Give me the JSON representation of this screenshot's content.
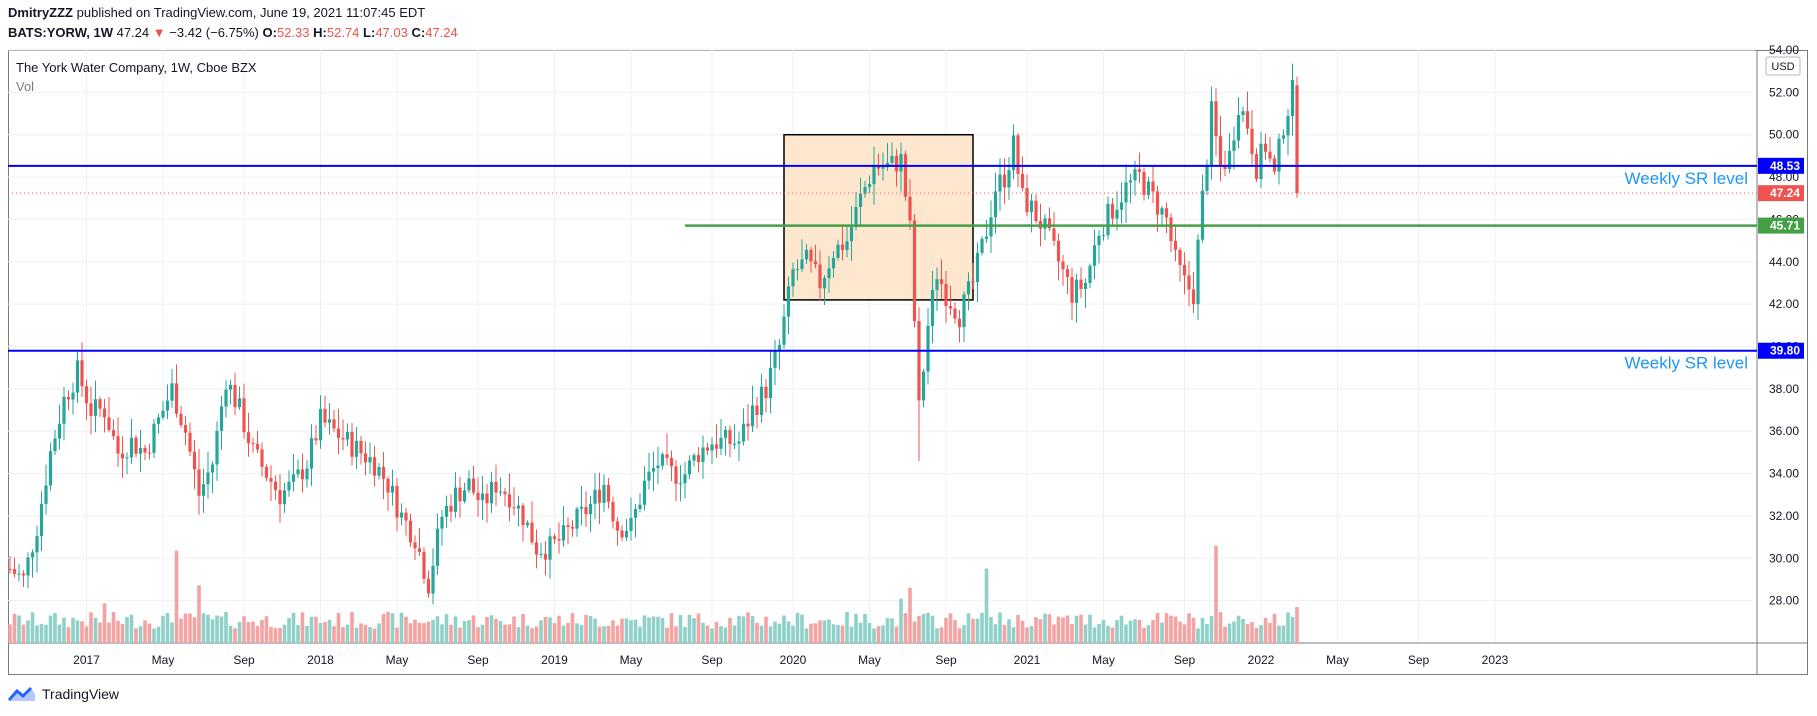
{
  "header": {
    "author": "DmitryZZZ",
    "published_text": "published on TradingView.com, June 19, 2021 11:07:45 EDT",
    "symbol": "BATS:YORW, 1W",
    "last": "47.24",
    "change_arrow": "▼",
    "change": "−3.42 (−6.75%)",
    "o_label": "O:",
    "o": "52.33",
    "h_label": "H:",
    "h": "52.74",
    "l_label": "L:",
    "l": "47.03",
    "c_label": "C:",
    "c": "47.24"
  },
  "legend": {
    "title": "The York Water Company, 1W, Cboe BZX",
    "vol": "Vol"
  },
  "footer": {
    "brand": "TradingView"
  },
  "colors": {
    "up": "#26a69a",
    "down": "#ef5350",
    "vol_up": "#8fd1c9",
    "vol_down": "#f3a3a1",
    "sr_line": "#0000ff",
    "green_line": "#43a047",
    "box_fill": "#fde8cf",
    "grid": "#eef0f3",
    "axis_text": "#131722"
  },
  "chart_data": {
    "type": "candlestick",
    "currency_badge": "USD",
    "y_ticks": [
      "28.00",
      "30.00",
      "32.00",
      "34.00",
      "36.00",
      "38.00",
      "40.00",
      "42.00",
      "44.00",
      "46.00",
      "48.00",
      "50.00",
      "52.00",
      "54.00"
    ],
    "x_ticks": [
      "2017",
      "May",
      "Sep",
      "2018",
      "May",
      "Sep",
      "2019",
      "May",
      "Sep",
      "2020",
      "May",
      "Sep",
      "2021",
      "May",
      "Sep",
      "2022",
      "May",
      "Sep",
      "2023"
    ],
    "ylim": [
      26.0,
      54.0
    ],
    "levels": [
      {
        "value": 48.53,
        "label": "48.53",
        "annotation": "Weekly SR level",
        "color": "#0000ff"
      },
      {
        "value": 39.8,
        "label": "39.80",
        "annotation": "Weekly SR level",
        "color": "#0000ff"
      },
      {
        "value": 45.71,
        "label": "45.71",
        "annotation": "",
        "color": "#43a047"
      }
    ],
    "last_price": {
      "value": 47.24,
      "label": "47.24"
    },
    "range_box": {
      "top": 50.0,
      "bottom": 42.2,
      "start_week": 172,
      "end_week": 214
    },
    "keypoints": [
      [
        0,
        29.5
      ],
      [
        3,
        29.0
      ],
      [
        6,
        31.5
      ],
      [
        9,
        35.0
      ],
      [
        12,
        37.5
      ],
      [
        15,
        38.8
      ],
      [
        18,
        37.0
      ],
      [
        21,
        37.0
      ],
      [
        24,
        35.0
      ],
      [
        27,
        35.5
      ],
      [
        30,
        35.0
      ],
      [
        33,
        36.5
      ],
      [
        36,
        38.0
      ],
      [
        39,
        36.0
      ],
      [
        42,
        33.0
      ],
      [
        45,
        34.5
      ],
      [
        48,
        38.5
      ],
      [
        51,
        37.0
      ],
      [
        54,
        35.0
      ],
      [
        57,
        34.0
      ],
      [
        60,
        33.0
      ],
      [
        63,
        33.5
      ],
      [
        66,
        34.5
      ],
      [
        69,
        36.5
      ],
      [
        72,
        36.0
      ],
      [
        75,
        35.5
      ],
      [
        78,
        35.0
      ],
      [
        81,
        34.5
      ],
      [
        84,
        33.5
      ],
      [
        87,
        32.0
      ],
      [
        90,
        31.0
      ],
      [
        93,
        28.8
      ],
      [
        96,
        32.0
      ],
      [
        99,
        33.0
      ],
      [
        102,
        33.5
      ],
      [
        105,
        32.5
      ],
      [
        108,
        33.5
      ],
      [
        111,
        33.0
      ],
      [
        114,
        32.0
      ],
      [
        117,
        30.5
      ],
      [
        120,
        30.5
      ],
      [
        123,
        31.0
      ],
      [
        126,
        31.8
      ],
      [
        129,
        32.5
      ],
      [
        132,
        33.5
      ],
      [
        135,
        31.5
      ],
      [
        138,
        31.5
      ],
      [
        141,
        33.5
      ],
      [
        144,
        34.5
      ],
      [
        147,
        34.0
      ],
      [
        150,
        34.0
      ],
      [
        153,
        35.0
      ],
      [
        156,
        35.5
      ],
      [
        159,
        35.5
      ],
      [
        162,
        35.5
      ],
      [
        165,
        37.0
      ],
      [
        168,
        38.0
      ],
      [
        171,
        40.0
      ],
      [
        174,
        43.5
      ],
      [
        177,
        44.0
      ],
      [
        180,
        43.0
      ],
      [
        183,
        44.5
      ],
      [
        186,
        45.0
      ],
      [
        189,
        47.0
      ],
      [
        192,
        48.5
      ],
      [
        195,
        48.5
      ],
      [
        198,
        48.8
      ],
      [
        200,
        45.5
      ],
      [
        202,
        37.0
      ],
      [
        204,
        41.0
      ],
      [
        206,
        43.5
      ],
      [
        208,
        42.5
      ],
      [
        211,
        41.5
      ],
      [
        214,
        43.0
      ],
      [
        217,
        45.5
      ],
      [
        219,
        47.5
      ],
      [
        221,
        48.0
      ],
      [
        223,
        49.5
      ],
      [
        225,
        47.0
      ],
      [
        227,
        46.5
      ],
      [
        230,
        45.5
      ],
      [
        233,
        44.0
      ],
      [
        236,
        42.5
      ],
      [
        239,
        43.0
      ],
      [
        242,
        45.5
      ],
      [
        245,
        46.5
      ],
      [
        248,
        47.5
      ],
      [
        251,
        48.0
      ],
      [
        254,
        47.0
      ],
      [
        257,
        46.0
      ],
      [
        259,
        44.0
      ],
      [
        261,
        43.0
      ],
      [
        263,
        42.5
      ],
      [
        265,
        47.0
      ],
      [
        267,
        51.0
      ],
      [
        269,
        48.5
      ],
      [
        271,
        49.0
      ],
      [
        273,
        51.5
      ],
      [
        275,
        50.5
      ],
      [
        277,
        48.5
      ],
      [
        279,
        49.5
      ],
      [
        281,
        48.0
      ],
      [
        283,
        50.5
      ],
      [
        285,
        52.0
      ],
      [
        286,
        47.24
      ]
    ],
    "volume_scale_max": 32.6
  }
}
